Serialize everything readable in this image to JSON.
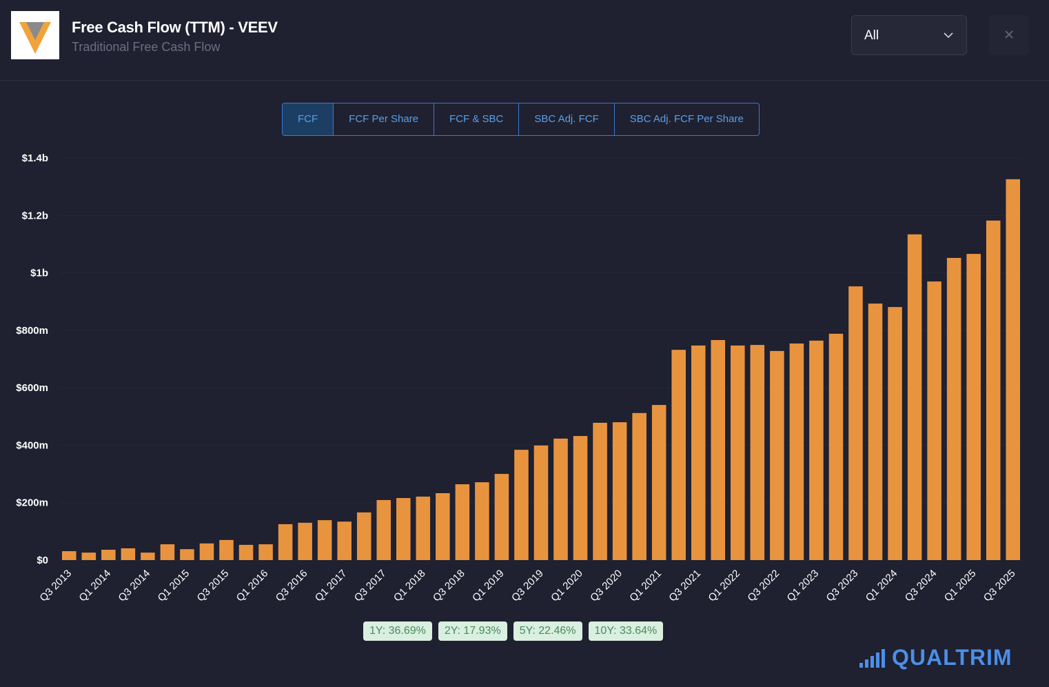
{
  "header": {
    "title": "Free Cash Flow (TTM) - VEEV",
    "subtitle": "Traditional Free Cash Flow"
  },
  "controls": {
    "range": "All"
  },
  "tabs": [
    "FCF",
    "FCF Per Share",
    "FCF & SBC",
    "SBC Adj. FCF",
    "SBC Adj. FCF Per Share"
  ],
  "chart_data": {
    "type": "bar",
    "color": "#e8943f",
    "grid": true,
    "categories": [
      "Q3 2013",
      null,
      "Q1 2014",
      null,
      "Q3 2014",
      null,
      "Q1 2015",
      null,
      "Q3 2015",
      null,
      "Q1 2016",
      null,
      "Q3 2016",
      null,
      "Q1 2017",
      null,
      "Q3 2017",
      null,
      "Q1 2018",
      null,
      "Q3 2018",
      null,
      "Q1 2019",
      null,
      "Q3 2019",
      null,
      "Q1 2020",
      null,
      "Q3 2020",
      null,
      "Q1 2021",
      null,
      "Q3 2021",
      null,
      "Q1 2022",
      null,
      "Q3 2022",
      null,
      "Q1 2023",
      null,
      "Q3 2023",
      null,
      "Q1 2024",
      null,
      "Q3 2024",
      null,
      "Q1 2025",
      null,
      "Q3 2025"
    ],
    "values": [
      31,
      26,
      36,
      41,
      26,
      55,
      38,
      58,
      70,
      53,
      55,
      125,
      130,
      139,
      134,
      166,
      209,
      216,
      221,
      233,
      264,
      271,
      300,
      384,
      399,
      423,
      432,
      478,
      480,
      512,
      540,
      732,
      747,
      766,
      747,
      749,
      728,
      754,
      764,
      788,
      953,
      893,
      881,
      1134,
      970,
      1052,
      1066,
      1182,
      1326
    ],
    "ylim": [
      0,
      1400
    ],
    "yticks": [
      {
        "value": 0,
        "label": "$0"
      },
      {
        "value": 200,
        "label": "$200m"
      },
      {
        "value": 400,
        "label": "$400m"
      },
      {
        "value": 600,
        "label": "$600m"
      },
      {
        "value": 800,
        "label": "$800m"
      },
      {
        "value": 1000,
        "label": "$1b"
      },
      {
        "value": 1200,
        "label": "$1.2b"
      },
      {
        "value": 1400,
        "label": "$1.4b"
      }
    ]
  },
  "growth_badges": [
    "1Y: 36.69%",
    "2Y: 17.93%",
    "5Y: 22.46%",
    "10Y: 33.64%"
  ],
  "brand": "QUALTRIM"
}
